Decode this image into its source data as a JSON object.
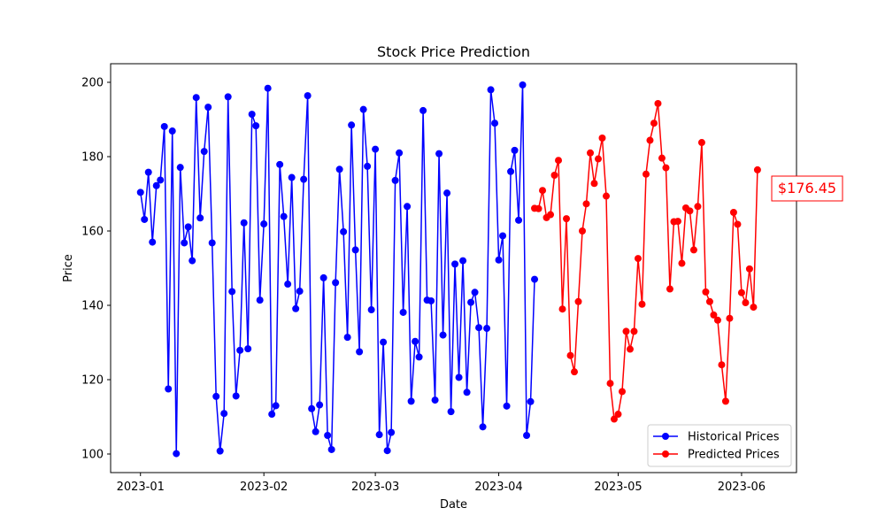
{
  "chart_data": {
    "type": "line",
    "title": "Stock Price Prediction",
    "xlabel": "Date",
    "ylabel": "Price",
    "x_tick_labels": [
      "2023-01",
      "2023-02",
      "2023-03",
      "2023-04",
      "2023-05",
      "2023-06"
    ],
    "x_tick_days": [
      0,
      31,
      59,
      90,
      120,
      151
    ],
    "y_ticks": [
      100,
      120,
      140,
      160,
      180,
      200
    ],
    "xlim_days": [
      -7.5,
      164.8
    ],
    "ylim": [
      95,
      205
    ],
    "grid": false,
    "legend_position": "bottom-right",
    "annotation": {
      "text": "$176.45",
      "anchor_series": "Predicted Prices",
      "anchor": "last_point"
    },
    "series": [
      {
        "name": "Historical Prices",
        "color": "#0000ff",
        "start_day": 0,
        "values": [
          170.4,
          163.1,
          175.8,
          157.0,
          172.2,
          173.7,
          188.1,
          117.5,
          186.9,
          100.1,
          177.1,
          156.8,
          161.1,
          152.0,
          195.9,
          163.5,
          181.4,
          193.3,
          156.8,
          115.5,
          100.8,
          110.9,
          196.1,
          143.7,
          115.6,
          127.9,
          162.2,
          128.3,
          191.4,
          188.3,
          141.4,
          161.9,
          198.4,
          110.7,
          113.0,
          177.9,
          163.9,
          145.7,
          174.4,
          139.1,
          143.8,
          173.9,
          196.4,
          112.2,
          106.0,
          113.2,
          147.4,
          105.0,
          101.2,
          146.1,
          176.6,
          159.8,
          131.4,
          188.5,
          154.9,
          127.5,
          192.7,
          177.4,
          138.8,
          182.0,
          105.2,
          130.1,
          100.9,
          105.8,
          173.6,
          181.0,
          138.1,
          166.6,
          114.2,
          130.3,
          126.1,
          192.4,
          141.4,
          141.2,
          114.5,
          180.8,
          132.0,
          170.2,
          111.4,
          151.1,
          120.6,
          152.0,
          116.6,
          140.8,
          143.5,
          134.0,
          107.3,
          133.8,
          198.0,
          189.0,
          152.2,
          158.7,
          112.9,
          176.0,
          181.7,
          162.9,
          199.3,
          105.0,
          114.1,
          147.0
        ]
      },
      {
        "name": "Predicted Prices",
        "color": "#ff0000",
        "start_day": 99,
        "values": [
          166.1,
          166.0,
          170.9,
          163.6,
          164.4,
          175.0,
          179.0,
          139.0,
          163.3,
          126.5,
          122.1,
          141.0,
          160.0,
          167.3,
          181.0,
          172.8,
          179.4,
          185.0,
          169.4,
          119.0,
          109.4,
          110.7,
          116.8,
          133.0,
          128.2,
          133.0,
          152.6,
          140.3,
          175.3,
          184.4,
          189.0,
          194.3,
          179.6,
          177.0,
          144.4,
          162.5,
          162.6,
          151.3,
          166.2,
          165.4,
          154.9,
          166.6,
          183.8,
          143.6,
          141.0,
          137.4,
          136.0,
          124.0,
          114.2,
          136.5,
          165.0,
          161.8,
          143.4,
          140.7,
          149.8,
          139.5,
          176.45
        ]
      }
    ]
  }
}
